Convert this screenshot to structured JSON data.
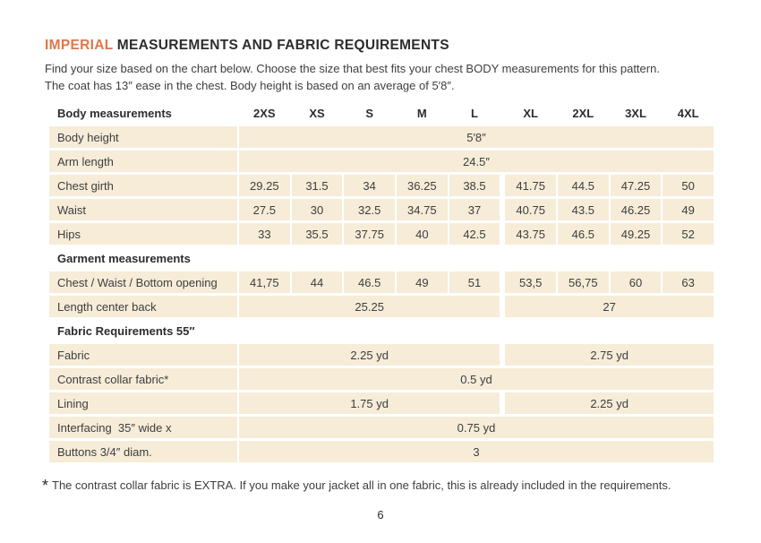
{
  "page": {
    "title_highlight": "IMPERIAL",
    "title_rest": " MEASUREMENTS AND FABRIC REQUIREMENTS",
    "intro_line1": "Find your size based on the chart below. Choose the size that best fits your chest BODY measurements for this pattern.",
    "intro_line2": "The coat has 13″ ease in the chest. Body height is based on an average of 5′8″.",
    "footnote_symbol": "*",
    "footnote_text": "The contrast collar fabric is EXTRA. If you make your jacket all in one fabric, this is already included in the requirements.",
    "page_number": "6"
  },
  "colors": {
    "accent_orange": "#E0764B",
    "row_cream": "#F6ECD8",
    "text_dark": "#2D2D2D"
  },
  "table": {
    "header_label": "Body measurements",
    "sizes": [
      "2XS",
      "XS",
      "S",
      "M",
      "L",
      "XL",
      "2XL",
      "3XL",
      "4XL"
    ],
    "rows": [
      {
        "type": "span-all",
        "label": "Body height",
        "value": "5′8″"
      },
      {
        "type": "span-all",
        "label": "Arm length",
        "value": "24.5″"
      },
      {
        "type": "cells",
        "label": "Chest girth",
        "values": [
          "29.25",
          "31.5",
          "34",
          "36.25",
          "38.5",
          "41.75",
          "44.5",
          "47.25",
          "50"
        ]
      },
      {
        "type": "cells",
        "label": "Waist",
        "values": [
          "27.5",
          "30",
          "32.5",
          "34.75",
          "37",
          "40.75",
          "43.5",
          "46.25",
          "49"
        ]
      },
      {
        "type": "cells",
        "label": "Hips",
        "values": [
          "33",
          "35.5",
          "37.75",
          "40",
          "42.5",
          "43.75",
          "46.5",
          "49.25",
          "52"
        ]
      },
      {
        "type": "section",
        "label": "Garment measurements"
      },
      {
        "type": "cells",
        "label": "Chest / Waist / Bottom opening",
        "values": [
          "41,75",
          "44",
          "46.5",
          "49",
          "51",
          "53,5",
          "56,75",
          "60",
          "63"
        ]
      },
      {
        "type": "split",
        "label": "Length center back",
        "left": "25.25",
        "right": "27"
      },
      {
        "type": "section",
        "label": "Fabric Requirements 55″"
      },
      {
        "type": "split",
        "label": "Fabric",
        "left": "2.25 yd",
        "right": "2.75 yd"
      },
      {
        "type": "span-all",
        "label": "Contrast collar fabric*",
        "value": "0.5 yd"
      },
      {
        "type": "split",
        "label": "Lining",
        "left": "1.75 yd",
        "right": "2.25 yd"
      },
      {
        "type": "span-all",
        "label": "Interfacing  35″ wide x",
        "value": "0.75 yd"
      },
      {
        "type": "span-all",
        "label": "Buttons 3/4″ diam.",
        "value": "3"
      }
    ]
  }
}
